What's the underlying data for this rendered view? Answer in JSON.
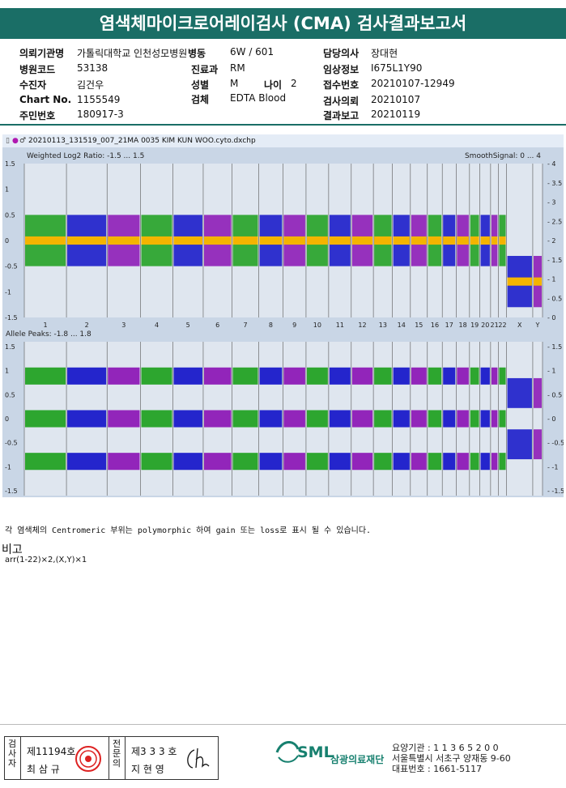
{
  "title": "염색체마이크로어레이검사 (CMA) 검사결과보고서",
  "fields": [
    {
      "label": "의뢰기관명",
      "value": "가톨릭대학교 인천성모병원"
    },
    {
      "label": "병동",
      "value": "6W / 601"
    },
    {
      "label": "담당의사",
      "value": "장대현"
    },
    {
      "label": "병원코드",
      "value": "53138"
    },
    {
      "label": "진료과",
      "value": "RM"
    },
    {
      "label": "임상정보",
      "value": "I675L1Y90"
    },
    {
      "label": "수진자",
      "value": "김건우"
    },
    {
      "label": "성별",
      "value": "M"
    },
    {
      "label": "나이",
      "value": "2"
    },
    {
      "label": "접수번호",
      "value": "20210107-12949"
    },
    {
      "label": "Chart No.",
      "value": "1155549"
    },
    {
      "label": "검체",
      "value": "EDTA Blood"
    },
    {
      "label": "검사의뢰",
      "value": "20210107"
    },
    {
      "label": "주민번호",
      "value": "180917-3"
    },
    {
      "label": "결과보고",
      "value": "20210119"
    }
  ],
  "plot": {
    "filename": "20210113_131519_007_21MA 0035 KIM KUN WOO.cyto.dxchp",
    "top_label": "Weighted Log2 Ratio: -1.5 ... 1.5",
    "top_right_label": "SmoothSignal: 0 ... 4",
    "bottom_label": "Allele Peaks: -1.8 ... 1.8",
    "top_left_ticks": [
      "1.5",
      "1",
      "0.5",
      "0",
      "-0.5",
      "-1",
      "-1.5"
    ],
    "top_right_ticks": [
      "4",
      "3.5",
      "3",
      "2.5",
      "2",
      "1.5",
      "1",
      "0.5",
      "0"
    ],
    "bottom_left_ticks": [
      "1.5",
      "1",
      "0.5",
      "0",
      "-0.5",
      "-1",
      "-1.5"
    ],
    "bottom_right_ticks": [
      "1.5",
      "1",
      "0.5",
      "0",
      "-0.5",
      "-1",
      "-1.5"
    ],
    "chromosomes": [
      "1",
      "2",
      "3",
      "4",
      "5",
      "6",
      "7",
      "8",
      "9",
      "10",
      "11",
      "12",
      "13",
      "14",
      "15",
      "16",
      "17",
      "18",
      "19",
      "20",
      "21",
      "22",
      "X",
      "Y"
    ],
    "colors": {
      "green": "#1a9e1a",
      "blue": "#1010c8",
      "purple": "#8a10b4",
      "smooth": "#f4b400"
    }
  },
  "note": "각 염색체의 Centromeric 부위는 polymorphic 하여 gain 또는 loss로 표시 될 수 있습니다.",
  "remarks": {
    "title": "비고",
    "text": "arr(1-22)×2,(X,Y)×1"
  },
  "signatures": {
    "left_role": "검사자",
    "left_license": "제11194호",
    "left_name": "최 삼 규",
    "right_role": "전문의",
    "right_license": "제3 3 3 호",
    "right_name": "지 현 영"
  },
  "lab": {
    "logo": "SML",
    "name": "삼광의료재단",
    "line1": "요양기관 : 1 1 3 6 5 2 0 0",
    "line2": "서울특별시 서초구 양재동 9-60",
    "line3": "대표번호 : 1661-5117"
  }
}
